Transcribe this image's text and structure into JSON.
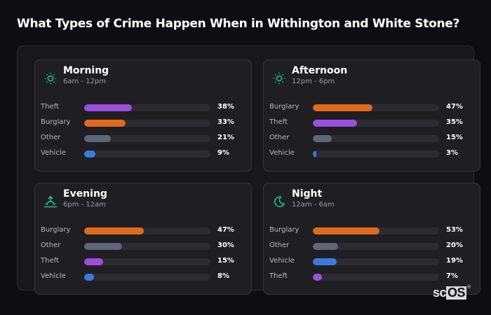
{
  "page": {
    "title": "What Types of Crime Happen When in Withington and White Stone?"
  },
  "colors": {
    "Theft": "#9b4fdc",
    "Burglary": "#e06b1e",
    "Other": "#5e6678",
    "Vehicle": "#3a7be0",
    "icon_accent": "#1fbf8f"
  },
  "cards": [
    {
      "name": "Morning",
      "range": "6am - 12pm",
      "icon": "sun-icon",
      "rows": [
        {
          "label": "Theft",
          "value": 38,
          "value_text": "38%"
        },
        {
          "label": "Burglary",
          "value": 33,
          "value_text": "33%"
        },
        {
          "label": "Other",
          "value": 21,
          "value_text": "21%"
        },
        {
          "label": "Vehicle",
          "value": 9,
          "value_text": "9%"
        }
      ]
    },
    {
      "name": "Afternoon",
      "range": "12pm - 6pm",
      "icon": "sun-icon",
      "rows": [
        {
          "label": "Burglary",
          "value": 47,
          "value_text": "47%"
        },
        {
          "label": "Theft",
          "value": 35,
          "value_text": "35%"
        },
        {
          "label": "Other",
          "value": 15,
          "value_text": "15%"
        },
        {
          "label": "Vehicle",
          "value": 3,
          "value_text": "3%"
        }
      ]
    },
    {
      "name": "Evening",
      "range": "6pm - 12am",
      "icon": "sunset-icon",
      "rows": [
        {
          "label": "Burglary",
          "value": 47,
          "value_text": "47%"
        },
        {
          "label": "Other",
          "value": 30,
          "value_text": "30%"
        },
        {
          "label": "Theft",
          "value": 15,
          "value_text": "15%"
        },
        {
          "label": "Vehicle",
          "value": 8,
          "value_text": "8%"
        }
      ]
    },
    {
      "name": "Night",
      "range": "12am - 6am",
      "icon": "moon-icon",
      "rows": [
        {
          "label": "Burglary",
          "value": 53,
          "value_text": "53%"
        },
        {
          "label": "Other",
          "value": 20,
          "value_text": "20%"
        },
        {
          "label": "Vehicle",
          "value": 19,
          "value_text": "19%"
        },
        {
          "label": "Theft",
          "value": 7,
          "value_text": "7%"
        }
      ]
    }
  ],
  "logo": {
    "sc": "sc",
    "os": "OS",
    "reg": "®"
  },
  "chart_data": [
    {
      "type": "bar",
      "orientation": "horizontal",
      "title": "Morning (6am - 12pm)",
      "categories": [
        "Theft",
        "Burglary",
        "Other",
        "Vehicle"
      ],
      "values": [
        38,
        33,
        21,
        9
      ],
      "unit": "%",
      "xlim": [
        0,
        100
      ]
    },
    {
      "type": "bar",
      "orientation": "horizontal",
      "title": "Afternoon (12pm - 6pm)",
      "categories": [
        "Burglary",
        "Theft",
        "Other",
        "Vehicle"
      ],
      "values": [
        47,
        35,
        15,
        3
      ],
      "unit": "%",
      "xlim": [
        0,
        100
      ]
    },
    {
      "type": "bar",
      "orientation": "horizontal",
      "title": "Evening (6pm - 12am)",
      "categories": [
        "Burglary",
        "Other",
        "Theft",
        "Vehicle"
      ],
      "values": [
        47,
        30,
        15,
        8
      ],
      "unit": "%",
      "xlim": [
        0,
        100
      ]
    },
    {
      "type": "bar",
      "orientation": "horizontal",
      "title": "Night (12am - 6am)",
      "categories": [
        "Burglary",
        "Other",
        "Vehicle",
        "Theft"
      ],
      "values": [
        53,
        20,
        19,
        7
      ],
      "unit": "%",
      "xlim": [
        0,
        100
      ]
    }
  ]
}
